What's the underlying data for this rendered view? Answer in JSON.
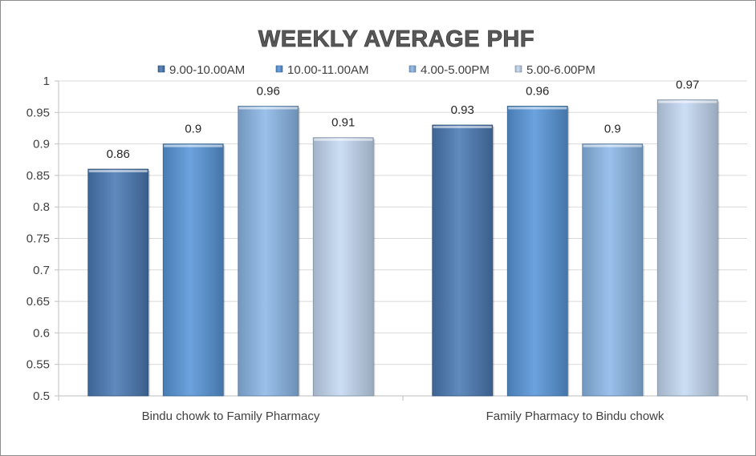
{
  "chart_data": {
    "type": "bar",
    "title": "WEEKLY AVERAGE PHF",
    "xlabel": "",
    "ylabel": "",
    "categories": [
      "Bindu chowk to Family Pharmacy",
      "Family Pharmacy to Bindu chowk"
    ],
    "series": [
      {
        "name": "9.00-10.00AM",
        "values": [
          0.86,
          0.93
        ],
        "color": "#4a7ab4"
      },
      {
        "name": "10.00-11.00AM",
        "values": [
          0.9,
          0.96
        ],
        "color": "#5897da"
      },
      {
        "name": "4.00-5.00PM",
        "values": [
          0.96,
          0.9
        ],
        "color": "#8cb8e8"
      },
      {
        "name": "5.00-6.00PM",
        "values": [
          0.91,
          0.97
        ],
        "color": "#c5daf4"
      }
    ],
    "ylim": [
      0.5,
      1
    ],
    "yticks": [
      "0.5",
      "0.55",
      "0.6",
      "0.65",
      "0.7",
      "0.75",
      "0.8",
      "0.85",
      "0.9",
      "0.95",
      "1"
    ],
    "grid": true,
    "legend_position": "top"
  }
}
